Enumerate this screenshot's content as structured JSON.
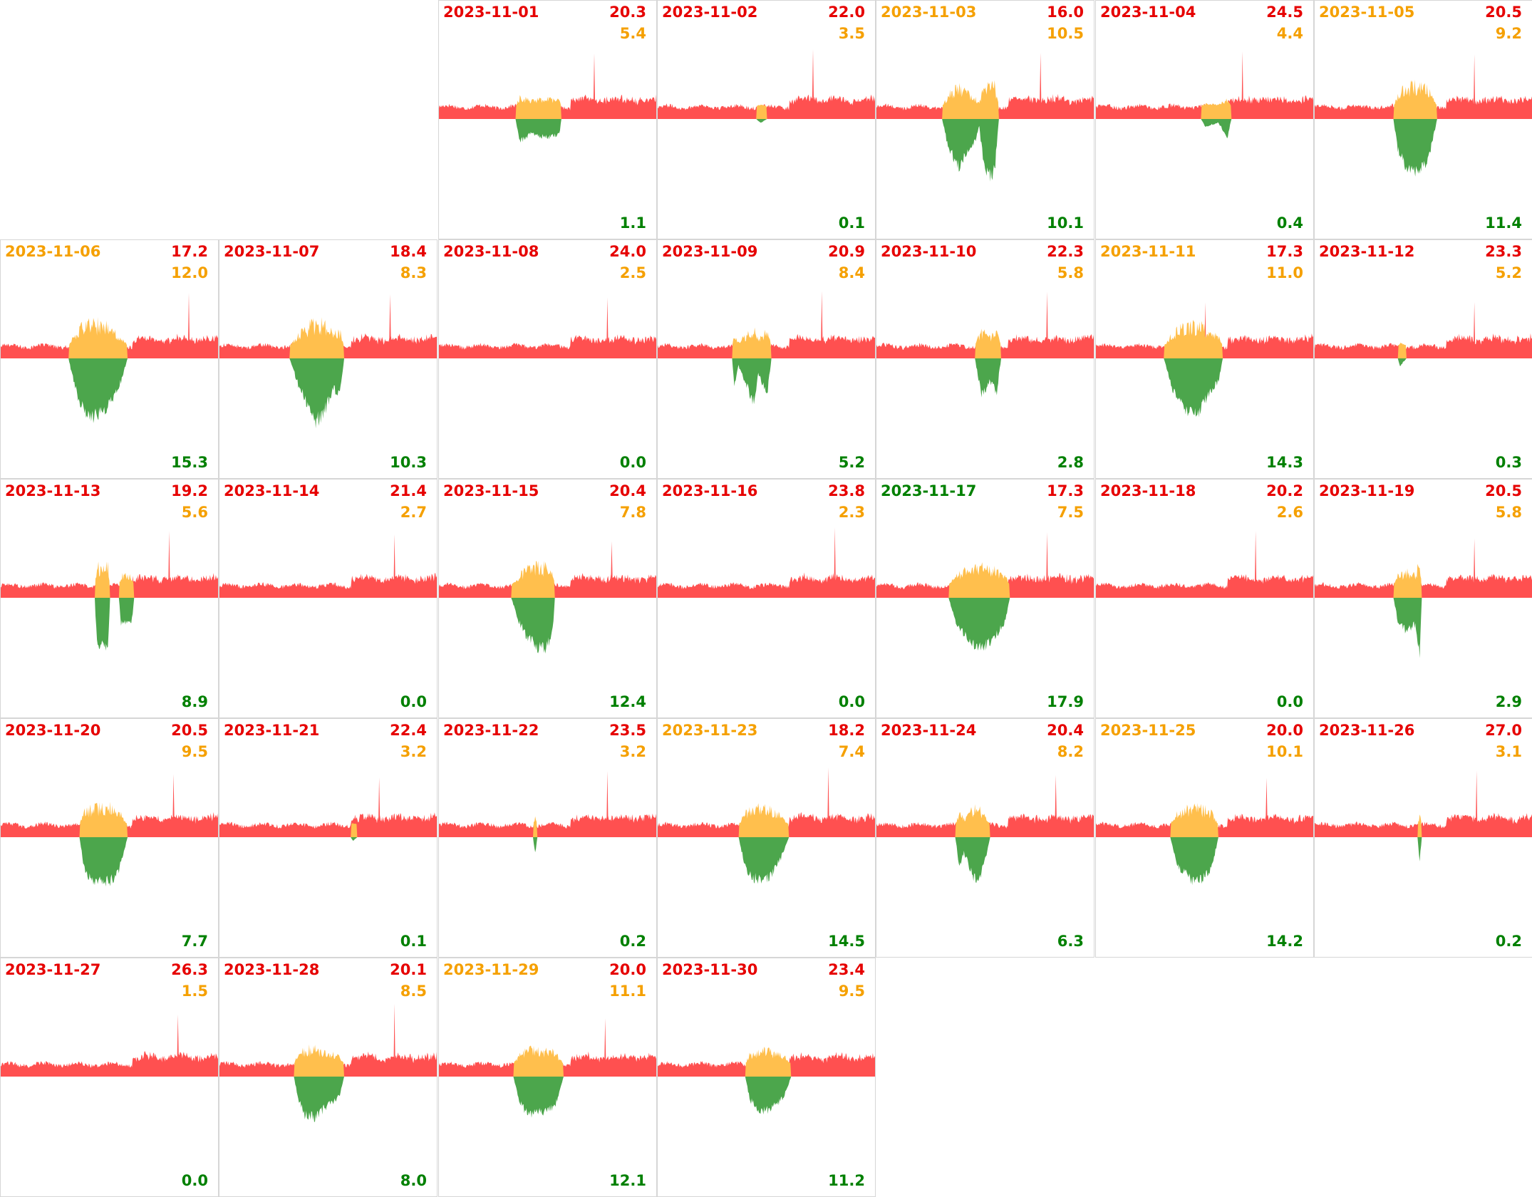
{
  "chart_data": {
    "type": "area",
    "layout": "calendar-grid",
    "colors": {
      "consumption": "#ff5050",
      "import": "#ffbf4d",
      "solar": "#4ca64c",
      "red_text": "#e60000",
      "orange_text": "#f5a000",
      "green_text": "#008000",
      "grid_line": "#d6d6d6"
    },
    "legend": "none",
    "days": [
      {
        "date": "2023-11-01",
        "consumption": "20.3",
        "import": "5.4",
        "solar": "1.1",
        "date_color": "red",
        "solar_profile": [
          [
            0.35,
            0.0
          ],
          [
            0.37,
            0.3
          ],
          [
            0.42,
            0.2
          ],
          [
            0.5,
            0.25
          ],
          [
            0.55,
            0.2
          ],
          [
            0.56,
            0.0
          ]
        ],
        "spike": 0.71
      },
      {
        "date": "2023-11-02",
        "consumption": "22.0",
        "import": "3.5",
        "solar": "0.1",
        "date_color": "red",
        "solar_profile": [
          [
            0.45,
            0.0
          ],
          [
            0.47,
            0.05
          ],
          [
            0.5,
            0.0
          ]
        ],
        "spike": 0.71
      },
      {
        "date": "2023-11-03",
        "consumption": "16.0",
        "import": "10.5",
        "solar": "10.1",
        "date_color": "orange",
        "solar_profile": [
          [
            0.3,
            0.0
          ],
          [
            0.33,
            0.4
          ],
          [
            0.38,
            0.65
          ],
          [
            0.4,
            0.5
          ],
          [
            0.45,
            0.3
          ],
          [
            0.47,
            0.1
          ],
          [
            0.49,
            0.6
          ],
          [
            0.52,
            0.75
          ],
          [
            0.54,
            0.7
          ],
          [
            0.56,
            0.0
          ]
        ],
        "spike": 0.75
      },
      {
        "date": "2023-11-04",
        "consumption": "24.5",
        "import": "4.4",
        "solar": "0.4",
        "date_color": "red",
        "solar_profile": [
          [
            0.48,
            0.0
          ],
          [
            0.5,
            0.1
          ],
          [
            0.56,
            0.05
          ],
          [
            0.6,
            0.25
          ],
          [
            0.62,
            0.0
          ]
        ],
        "spike": 0.67
      },
      {
        "date": "2023-11-05",
        "consumption": "20.5",
        "import": "9.2",
        "solar": "11.4",
        "date_color": "orange",
        "solar_profile": [
          [
            0.36,
            0.0
          ],
          [
            0.38,
            0.4
          ],
          [
            0.42,
            0.65
          ],
          [
            0.45,
            0.75
          ],
          [
            0.48,
            0.7
          ],
          [
            0.52,
            0.55
          ],
          [
            0.56,
            0.0
          ]
        ],
        "spike": 0.73
      },
      {
        "date": "2023-11-06",
        "consumption": "17.2",
        "import": "12.0",
        "solar": "15.3",
        "date_color": "orange",
        "solar_profile": [
          [
            0.31,
            0.0
          ],
          [
            0.34,
            0.4
          ],
          [
            0.38,
            0.7
          ],
          [
            0.42,
            0.78
          ],
          [
            0.46,
            0.75
          ],
          [
            0.5,
            0.6
          ],
          [
            0.55,
            0.3
          ],
          [
            0.58,
            0.0
          ]
        ],
        "spike": 0.86
      },
      {
        "date": "2023-11-07",
        "consumption": "18.4",
        "import": "8.3",
        "solar": "10.3",
        "date_color": "red",
        "solar_profile": [
          [
            0.32,
            0.0
          ],
          [
            0.36,
            0.35
          ],
          [
            0.4,
            0.6
          ],
          [
            0.44,
            0.85
          ],
          [
            0.48,
            0.7
          ],
          [
            0.52,
            0.4
          ],
          [
            0.55,
            0.5
          ],
          [
            0.57,
            0.0
          ]
        ],
        "spike": 0.78
      },
      {
        "date": "2023-11-08",
        "consumption": "24.0",
        "import": "2.5",
        "solar": "0.0",
        "date_color": "red",
        "solar_profile": [],
        "spike": 0.77
      },
      {
        "date": "2023-11-09",
        "consumption": "20.9",
        "import": "8.4",
        "solar": "5.2",
        "date_color": "red",
        "solar_profile": [
          [
            0.34,
            0.0
          ],
          [
            0.35,
            0.35
          ],
          [
            0.37,
            0.1
          ],
          [
            0.44,
            0.6
          ],
          [
            0.46,
            0.2
          ],
          [
            0.5,
            0.5
          ],
          [
            0.52,
            0.0
          ]
        ],
        "spike": 0.75
      },
      {
        "date": "2023-11-10",
        "consumption": "22.3",
        "import": "5.8",
        "solar": "2.8",
        "date_color": "red",
        "solar_profile": [
          [
            0.45,
            0.0
          ],
          [
            0.48,
            0.5
          ],
          [
            0.52,
            0.3
          ],
          [
            0.55,
            0.45
          ],
          [
            0.57,
            0.0
          ]
        ],
        "spike": 0.78
      },
      {
        "date": "2023-11-11",
        "consumption": "17.3",
        "import": "11.0",
        "solar": "14.3",
        "date_color": "orange",
        "solar_profile": [
          [
            0.31,
            0.0
          ],
          [
            0.35,
            0.4
          ],
          [
            0.4,
            0.65
          ],
          [
            0.44,
            0.75
          ],
          [
            0.48,
            0.68
          ],
          [
            0.52,
            0.45
          ],
          [
            0.56,
            0.3
          ],
          [
            0.58,
            0.0
          ]
        ],
        "spike": 0.5
      },
      {
        "date": "2023-11-12",
        "consumption": "23.3",
        "import": "5.2",
        "solar": "0.3",
        "date_color": "red",
        "solar_profile": [
          [
            0.38,
            0.0
          ],
          [
            0.39,
            0.1
          ],
          [
            0.42,
            0.0
          ]
        ],
        "spike": 0.73
      },
      {
        "date": "2023-11-13",
        "consumption": "19.2",
        "import": "5.6",
        "solar": "8.9",
        "date_color": "red",
        "solar_profile": [
          [
            0.43,
            0.0
          ],
          [
            0.44,
            0.65
          ],
          [
            0.49,
            0.65
          ],
          [
            0.5,
            0.0
          ],
          [
            0.54,
            0.0
          ],
          [
            0.55,
            0.35
          ],
          [
            0.6,
            0.3
          ],
          [
            0.61,
            0.0
          ]
        ],
        "spike": 0.77
      },
      {
        "date": "2023-11-14",
        "consumption": "21.4",
        "import": "2.7",
        "solar": "0.0",
        "date_color": "red",
        "solar_profile": [],
        "spike": 0.8
      },
      {
        "date": "2023-11-15",
        "consumption": "20.4",
        "import": "7.8",
        "solar": "12.4",
        "date_color": "red",
        "solar_profile": [
          [
            0.33,
            0.0
          ],
          [
            0.37,
            0.35
          ],
          [
            0.41,
            0.55
          ],
          [
            0.45,
            0.65
          ],
          [
            0.49,
            0.66
          ],
          [
            0.52,
            0.45
          ],
          [
            0.53,
            0.0
          ]
        ],
        "spike": 0.79
      },
      {
        "date": "2023-11-16",
        "consumption": "23.8",
        "import": "2.3",
        "solar": "0.0",
        "date_color": "red",
        "solar_profile": [],
        "spike": 0.81
      },
      {
        "date": "2023-11-17",
        "consumption": "17.3",
        "import": "7.5",
        "solar": "17.9",
        "date_color": "green",
        "solar_profile": [
          [
            0.33,
            0.0
          ],
          [
            0.36,
            0.3
          ],
          [
            0.4,
            0.5
          ],
          [
            0.45,
            0.62
          ],
          [
            0.5,
            0.62
          ],
          [
            0.55,
            0.5
          ],
          [
            0.59,
            0.3
          ],
          [
            0.61,
            0.0
          ]
        ],
        "spike": 0.78
      },
      {
        "date": "2023-11-18",
        "consumption": "20.2",
        "import": "2.6",
        "solar": "0.0",
        "date_color": "red",
        "solar_profile": [],
        "spike": 0.73
      },
      {
        "date": "2023-11-19",
        "consumption": "20.5",
        "import": "5.8",
        "solar": "2.9",
        "date_color": "red",
        "solar_profile": [
          [
            0.36,
            0.0
          ],
          [
            0.38,
            0.3
          ],
          [
            0.42,
            0.45
          ],
          [
            0.46,
            0.35
          ],
          [
            0.48,
            0.75
          ],
          [
            0.49,
            0.0
          ]
        ],
        "spike": 0.73
      },
      {
        "date": "2023-11-20",
        "consumption": "20.5",
        "import": "9.5",
        "solar": "7.7",
        "date_color": "red",
        "solar_profile": [
          [
            0.36,
            0.0
          ],
          [
            0.38,
            0.4
          ],
          [
            0.42,
            0.6
          ],
          [
            0.46,
            0.58
          ],
          [
            0.5,
            0.6
          ],
          [
            0.54,
            0.45
          ],
          [
            0.58,
            0.0
          ]
        ],
        "spike": 0.79
      },
      {
        "date": "2023-11-21",
        "consumption": "22.4",
        "import": "3.2",
        "solar": "0.1",
        "date_color": "red",
        "solar_profile": [
          [
            0.6,
            0.0
          ],
          [
            0.61,
            0.05
          ],
          [
            0.63,
            0.0
          ]
        ],
        "spike": 0.73
      },
      {
        "date": "2023-11-22",
        "consumption": "23.5",
        "import": "3.2",
        "solar": "0.2",
        "date_color": "red",
        "solar_profile": [
          [
            0.43,
            0.0
          ],
          [
            0.44,
            0.22
          ],
          [
            0.45,
            0.0
          ]
        ],
        "spike": 0.77
      },
      {
        "date": "2023-11-23",
        "consumption": "18.2",
        "import": "7.4",
        "solar": "14.5",
        "date_color": "orange",
        "solar_profile": [
          [
            0.37,
            0.0
          ],
          [
            0.4,
            0.4
          ],
          [
            0.44,
            0.55
          ],
          [
            0.48,
            0.57
          ],
          [
            0.52,
            0.5
          ],
          [
            0.56,
            0.3
          ],
          [
            0.6,
            0.0
          ]
        ],
        "spike": 0.78
      },
      {
        "date": "2023-11-24",
        "consumption": "20.4",
        "import": "8.2",
        "solar": "6.3",
        "date_color": "red",
        "solar_profile": [
          [
            0.36,
            0.0
          ],
          [
            0.38,
            0.4
          ],
          [
            0.4,
            0.2
          ],
          [
            0.44,
            0.5
          ],
          [
            0.46,
            0.6
          ],
          [
            0.49,
            0.4
          ],
          [
            0.52,
            0.0
          ]
        ],
        "spike": 0.82
      },
      {
        "date": "2023-11-25",
        "consumption": "20.0",
        "import": "10.1",
        "solar": "14.2",
        "date_color": "orange",
        "solar_profile": [
          [
            0.34,
            0.0
          ],
          [
            0.37,
            0.35
          ],
          [
            0.41,
            0.5
          ],
          [
            0.44,
            0.58
          ],
          [
            0.49,
            0.55
          ],
          [
            0.53,
            0.4
          ],
          [
            0.56,
            0.0
          ]
        ],
        "spike": 0.78
      },
      {
        "date": "2023-11-26",
        "consumption": "27.0",
        "import": "3.1",
        "solar": "0.2",
        "date_color": "red",
        "solar_profile": [
          [
            0.47,
            0.0
          ],
          [
            0.48,
            0.3
          ],
          [
            0.49,
            0.0
          ]
        ],
        "spike": 0.74
      },
      {
        "date": "2023-11-27",
        "consumption": "26.3",
        "import": "1.5",
        "solar": "0.0",
        "date_color": "red",
        "solar_profile": [],
        "spike": 0.81
      },
      {
        "date": "2023-11-28",
        "consumption": "20.1",
        "import": "8.5",
        "solar": "8.0",
        "date_color": "red",
        "solar_profile": [
          [
            0.34,
            0.0
          ],
          [
            0.36,
            0.3
          ],
          [
            0.39,
            0.5
          ],
          [
            0.43,
            0.55
          ],
          [
            0.47,
            0.45
          ],
          [
            0.51,
            0.35
          ],
          [
            0.55,
            0.25
          ],
          [
            0.57,
            0.0
          ]
        ],
        "spike": 0.8
      },
      {
        "date": "2023-11-29",
        "consumption": "20.0",
        "import": "11.1",
        "solar": "12.1",
        "date_color": "orange",
        "solar_profile": [
          [
            0.34,
            0.0
          ],
          [
            0.37,
            0.35
          ],
          [
            0.41,
            0.5
          ],
          [
            0.45,
            0.48
          ],
          [
            0.49,
            0.45
          ],
          [
            0.53,
            0.4
          ],
          [
            0.57,
            0.0
          ]
        ],
        "spike": 0.76
      },
      {
        "date": "2023-11-30",
        "consumption": "23.4",
        "import": "9.5",
        "solar": "11.2",
        "date_color": "red",
        "solar_profile": [
          [
            0.4,
            0.0
          ],
          [
            0.42,
            0.3
          ],
          [
            0.46,
            0.45
          ],
          [
            0.5,
            0.45
          ],
          [
            0.55,
            0.35
          ],
          [
            0.58,
            0.25
          ],
          [
            0.61,
            0.0
          ]
        ],
        "spike": 0.0
      }
    ]
  }
}
